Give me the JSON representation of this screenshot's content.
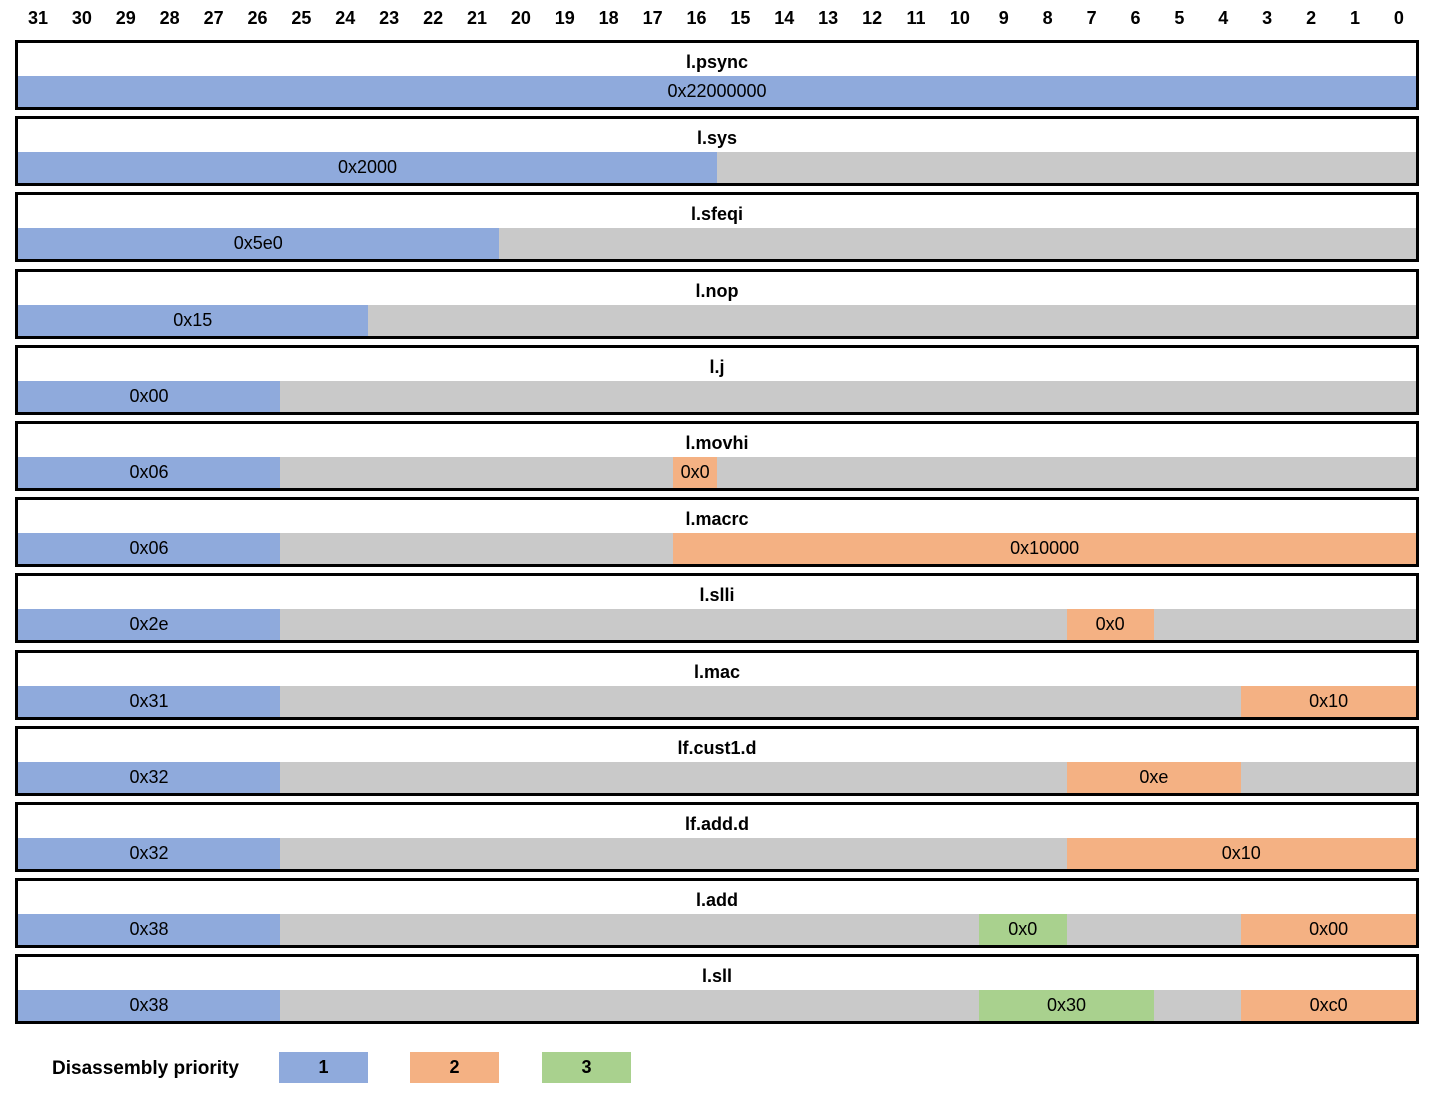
{
  "bit_positions": [
    "31",
    "30",
    "29",
    "28",
    "27",
    "26",
    "25",
    "24",
    "23",
    "22",
    "21",
    "20",
    "19",
    "18",
    "17",
    "16",
    "15",
    "14",
    "13",
    "12",
    "11",
    "10",
    "9",
    "8",
    "7",
    "6",
    "5",
    "4",
    "3",
    "2",
    "1",
    "0"
  ],
  "colors": {
    "priority_1": "#8faadc",
    "priority_2": "#f4b183",
    "priority_3": "#a9d18e",
    "unused": "#c9c9c9"
  },
  "instructions": [
    {
      "name": "l.psync",
      "fields": [
        {
          "hi": 31,
          "lo": 0,
          "value": "0x22000000",
          "priority": 1
        }
      ]
    },
    {
      "name": "l.sys",
      "fields": [
        {
          "hi": 31,
          "lo": 16,
          "value": "0x2000",
          "priority": 1
        }
      ]
    },
    {
      "name": "l.sfeqi",
      "fields": [
        {
          "hi": 31,
          "lo": 21,
          "value": "0x5e0",
          "priority": 1
        }
      ]
    },
    {
      "name": "l.nop",
      "fields": [
        {
          "hi": 31,
          "lo": 24,
          "value": "0x15",
          "priority": 1
        }
      ]
    },
    {
      "name": "l.j",
      "fields": [
        {
          "hi": 31,
          "lo": 26,
          "value": "0x00",
          "priority": 1
        }
      ]
    },
    {
      "name": "l.movhi",
      "fields": [
        {
          "hi": 31,
          "lo": 26,
          "value": "0x06",
          "priority": 1
        },
        {
          "hi": 16,
          "lo": 16,
          "value": "0x0",
          "priority": 2
        }
      ]
    },
    {
      "name": "l.macrc",
      "fields": [
        {
          "hi": 31,
          "lo": 26,
          "value": "0x06",
          "priority": 1
        },
        {
          "hi": 16,
          "lo": 0,
          "value": "0x10000",
          "priority": 2
        }
      ]
    },
    {
      "name": "l.slli",
      "fields": [
        {
          "hi": 31,
          "lo": 26,
          "value": "0x2e",
          "priority": 1
        },
        {
          "hi": 7,
          "lo": 6,
          "value": "0x0",
          "priority": 2
        }
      ]
    },
    {
      "name": "l.mac",
      "fields": [
        {
          "hi": 31,
          "lo": 26,
          "value": "0x31",
          "priority": 1
        },
        {
          "hi": 3,
          "lo": 0,
          "value": "0x10",
          "priority": 2
        }
      ]
    },
    {
      "name": "lf.cust1.d",
      "fields": [
        {
          "hi": 31,
          "lo": 26,
          "value": "0x32",
          "priority": 1
        },
        {
          "hi": 7,
          "lo": 4,
          "value": "0xe",
          "priority": 2
        }
      ]
    },
    {
      "name": "lf.add.d",
      "fields": [
        {
          "hi": 31,
          "lo": 26,
          "value": "0x32",
          "priority": 1
        },
        {
          "hi": 7,
          "lo": 0,
          "value": "0x10",
          "priority": 2
        }
      ]
    },
    {
      "name": "l.add",
      "fields": [
        {
          "hi": 31,
          "lo": 26,
          "value": "0x38",
          "priority": 1
        },
        {
          "hi": 9,
          "lo": 8,
          "value": "0x0",
          "priority": 3
        },
        {
          "hi": 3,
          "lo": 0,
          "value": "0x00",
          "priority": 2
        }
      ]
    },
    {
      "name": "l.sll",
      "fields": [
        {
          "hi": 31,
          "lo": 26,
          "value": "0x38",
          "priority": 1
        },
        {
          "hi": 9,
          "lo": 6,
          "value": "0x30",
          "priority": 3
        },
        {
          "hi": 3,
          "lo": 0,
          "value": "0xc0",
          "priority": 2
        }
      ]
    }
  ],
  "legend": {
    "title": "Disassembly priority",
    "items": [
      {
        "label": "1",
        "priority": 1
      },
      {
        "label": "2",
        "priority": 2
      },
      {
        "label": "3",
        "priority": 3
      }
    ]
  }
}
